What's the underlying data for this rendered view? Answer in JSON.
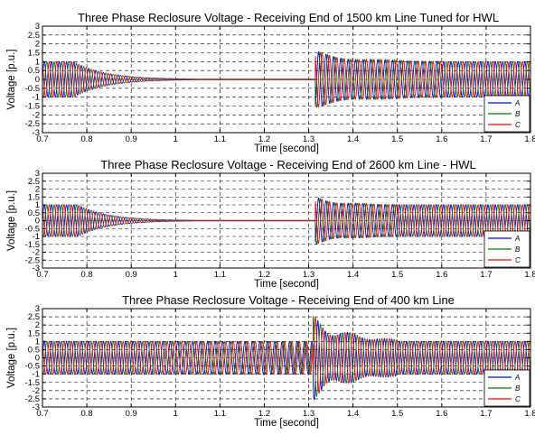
{
  "chart_data": [
    {
      "type": "line",
      "title": "Three Phase Reclosure Voltage - Receiving End of 1500 km Line Tuned for HWL",
      "xlabel": "Time [second]",
      "ylabel": "Voltage [p.u.]",
      "xlim": [
        0.7,
        1.8
      ],
      "ylim": [
        -3,
        3
      ],
      "xticks": [
        "0.7",
        "0.8",
        "0.9",
        "1",
        "1.1",
        "1.2",
        "1.3",
        "1.4",
        "1.5",
        "1.6",
        "1.7",
        "1.8"
      ],
      "yticks": [
        "3",
        "2.5",
        "2",
        "1.5",
        "1",
        "0.5",
        "0",
        "-0.5",
        "-1",
        "-1.5",
        "-2",
        "-2.5",
        "-3"
      ],
      "grid": true,
      "legend": "bottom-right",
      "frequency_hz": 60,
      "series": [
        {
          "name": "A",
          "color": "#0000ff"
        },
        {
          "name": "B",
          "color": "#008000"
        },
        {
          "name": "C",
          "color": "#ff0000"
        }
      ],
      "envelope": {
        "steady_amplitude": 1.0,
        "decay_start": 0.77,
        "decay_end": 1.0,
        "residual_level": 0.0,
        "reclose_time": 1.315,
        "reclose_peak": 1.6,
        "settled_amplitude": 1.0,
        "settle_by": 1.6
      }
    },
    {
      "type": "line",
      "title": "Three Phase Reclosure Voltage - Receiving End of 2600 km Line - HWL",
      "xlabel": "Time [second]",
      "ylabel": "Voltage [p.u.]",
      "xlim": [
        0.7,
        1.8
      ],
      "ylim": [
        -3,
        3
      ],
      "xticks": [
        "0.7",
        "0.8",
        "0.9",
        "1",
        "1.1",
        "1.2",
        "1.3",
        "1.4",
        "1.5",
        "1.6",
        "1.7",
        "1.8"
      ],
      "yticks": [
        "3",
        "2.5",
        "2",
        "1.5",
        "1",
        "0.5",
        "0",
        "-0.5",
        "-1",
        "-1.5",
        "-2",
        "-2.5",
        "-3"
      ],
      "grid": true,
      "legend": "bottom-right",
      "frequency_hz": 60,
      "series": [
        {
          "name": "A",
          "color": "#0000ff"
        },
        {
          "name": "B",
          "color": "#008000"
        },
        {
          "name": "C",
          "color": "#ff0000"
        }
      ],
      "envelope": {
        "steady_amplitude": 1.0,
        "decay_start": 0.78,
        "decay_end": 1.0,
        "residual_level": 0.0,
        "reclose_time": 1.315,
        "reclose_peak": 1.5,
        "settled_amplitude": 1.0,
        "settle_by": 1.5
      }
    },
    {
      "type": "line",
      "title": "Three Phase Reclosure Voltage - Receiving End of 400 km Line",
      "xlabel": "Time [second]",
      "ylabel": "Voltage [p.u.]",
      "xlim": [
        0.7,
        1.8
      ],
      "ylim": [
        -3,
        3
      ],
      "xticks": [
        "0.7",
        "0.8",
        "0.9",
        "1",
        "1.1",
        "1.2",
        "1.3",
        "1.4",
        "1.5",
        "1.6",
        "1.7",
        "1.8"
      ],
      "yticks": [
        "3",
        "2.5",
        "2",
        "1.5",
        "1",
        "0.5",
        "0",
        "-0.5",
        "-1",
        "-1.5",
        "-2",
        "-2.5",
        "-3"
      ],
      "grid": true,
      "legend": "bottom-right",
      "frequency_hz": 60,
      "series": [
        {
          "name": "A",
          "color": "#0000ff"
        },
        {
          "name": "B",
          "color": "#008000"
        },
        {
          "name": "C",
          "color": "#ff0000"
        }
      ],
      "envelope": {
        "steady_amplitude": 1.0,
        "open_amplitude": 1.0,
        "open_start": 0.9,
        "open_end": 1.31,
        "reclose_time": 1.31,
        "reclose_peak": 2.6,
        "settled_amplitude": 1.0,
        "settle_by": 1.5
      }
    }
  ]
}
